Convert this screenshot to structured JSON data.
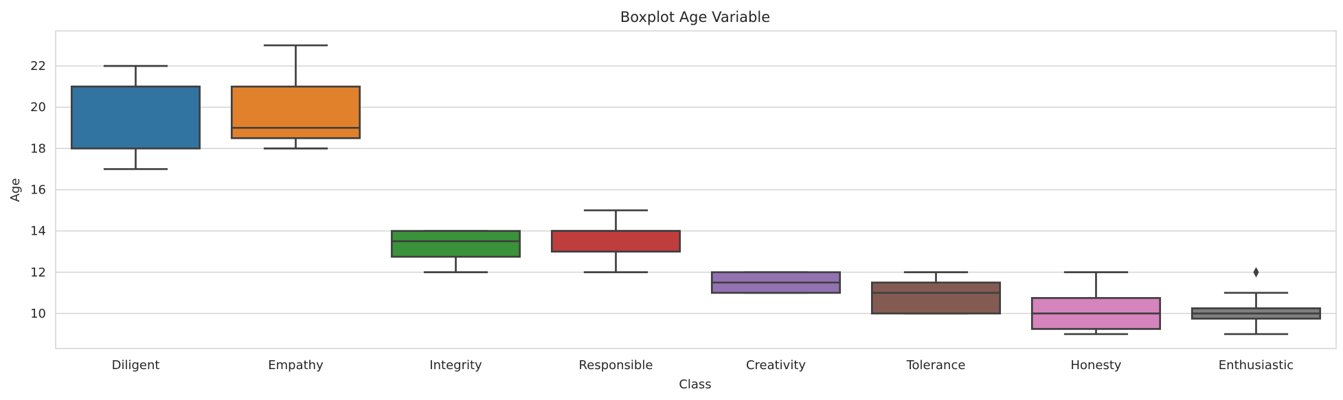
{
  "chart_data": {
    "type": "boxplot",
    "title": "Boxplot Age Variable",
    "xlabel": "Class",
    "ylabel": "Age",
    "ylim": [
      8.3,
      23.7
    ],
    "yticks": [
      10,
      12,
      14,
      16,
      18,
      20,
      22
    ],
    "grid": true,
    "categories": [
      "Diligent",
      "Empathy",
      "Integrity",
      "Responsible",
      "Creativity",
      "Tolerance",
      "Honesty",
      "Enthusiastic"
    ],
    "boxes": [
      {
        "category": "Diligent",
        "whisker_low": 17,
        "q1": 18,
        "median": 21,
        "q3": 21,
        "whisker_high": 22,
        "outliers": [],
        "color": "#3274a1"
      },
      {
        "category": "Empathy",
        "whisker_low": 18,
        "q1": 18.5,
        "median": 19,
        "q3": 21,
        "whisker_high": 23,
        "outliers": [],
        "color": "#e1812c"
      },
      {
        "category": "Integrity",
        "whisker_low": 12,
        "q1": 12.75,
        "median": 13.5,
        "q3": 14,
        "whisker_high": 14,
        "outliers": [],
        "color": "#3a923a"
      },
      {
        "category": "Responsible",
        "whisker_low": 12,
        "q1": 13,
        "median": 14,
        "q3": 14,
        "whisker_high": 15,
        "outliers": [],
        "color": "#c03d3e"
      },
      {
        "category": "Creativity",
        "whisker_low": 11,
        "q1": 11,
        "median": 11.5,
        "q3": 12,
        "whisker_high": 12,
        "outliers": [],
        "color": "#9372b2"
      },
      {
        "category": "Tolerance",
        "whisker_low": 10,
        "q1": 10,
        "median": 11,
        "q3": 11.5,
        "whisker_high": 12,
        "outliers": [],
        "color": "#845b53"
      },
      {
        "category": "Honesty",
        "whisker_low": 9,
        "q1": 9.25,
        "median": 10,
        "q3": 10.75,
        "whisker_high": 12,
        "outliers": [],
        "color": "#d684bd"
      },
      {
        "category": "Enthusiastic",
        "whisker_low": 9,
        "q1": 9.75,
        "median": 10,
        "q3": 10.25,
        "whisker_high": 11,
        "outliers": [
          12
        ],
        "color": "#7f7f7f"
      }
    ]
  }
}
